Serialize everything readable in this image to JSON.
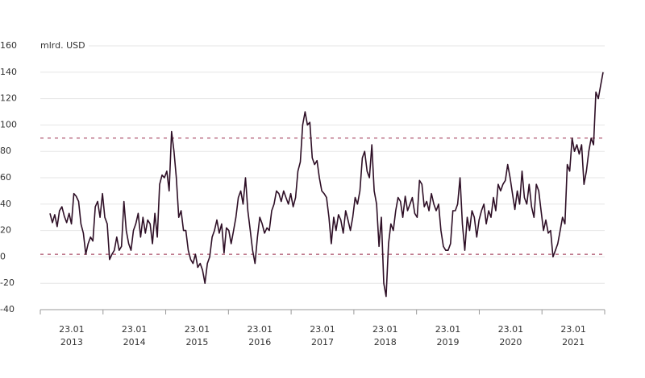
{
  "chart_data": {
    "type": "line",
    "axis_label": "mlrd. USD",
    "x_labels": [
      {
        "day": "23.01",
        "year": "2013"
      },
      {
        "day": "23.01",
        "year": "2014"
      },
      {
        "day": "23.01",
        "year": "2015"
      },
      {
        "day": "23.01",
        "year": "2016"
      },
      {
        "day": "23.01",
        "year": "2017"
      },
      {
        "day": "23.01",
        "year": "2018"
      },
      {
        "day": "23.01",
        "year": "2019"
      },
      {
        "day": "23.01",
        "year": "2020"
      },
      {
        "day": "23.01",
        "year": "2021"
      }
    ],
    "series": [
      {
        "color": "#2e0f26",
        "values": [
          33,
          26,
          32,
          23,
          35,
          38,
          31,
          26,
          33,
          25,
          48,
          46,
          42,
          25,
          18,
          2,
          10,
          15,
          12,
          38,
          42,
          30,
          48,
          30,
          25,
          -2,
          2,
          5,
          15,
          5,
          8,
          42,
          20,
          10,
          5,
          20,
          25,
          33,
          15,
          30,
          18,
          28,
          25,
          10,
          33,
          15,
          55,
          62,
          60,
          65,
          50,
          95,
          80,
          60,
          30,
          35,
          20,
          20,
          5,
          -2,
          -5,
          2,
          -8,
          -5,
          -10,
          -20,
          -5,
          0,
          15,
          20,
          28,
          18,
          25,
          3,
          22,
          20,
          10,
          20,
          30,
          45,
          50,
          40,
          60,
          35,
          20,
          5,
          -5,
          15,
          30,
          25,
          18,
          22,
          20,
          35,
          40,
          50,
          48,
          42,
          50,
          45,
          40,
          48,
          38,
          45,
          65,
          72,
          100,
          110,
          100,
          102,
          75,
          70,
          73,
          60,
          50,
          48,
          45,
          30,
          10,
          30,
          20,
          32,
          28,
          18,
          35,
          28,
          20,
          30,
          45,
          40,
          50,
          75,
          80,
          65,
          60,
          85,
          50,
          40,
          8,
          30,
          -20,
          -30,
          10,
          25,
          20,
          35,
          45,
          42,
          30,
          46,
          35,
          40,
          45,
          33,
          30,
          58,
          55,
          38,
          42,
          35,
          48,
          40,
          35,
          40,
          20,
          8,
          5,
          5,
          10,
          35,
          35,
          40,
          60,
          25,
          5,
          30,
          20,
          35,
          30,
          15,
          28,
          35,
          40,
          25,
          35,
          30,
          45,
          35,
          55,
          50,
          55,
          58,
          70,
          60,
          48,
          36,
          50,
          40,
          65,
          45,
          40,
          55,
          38,
          30,
          55,
          50,
          35,
          20,
          28,
          18,
          20,
          0,
          5,
          10,
          20,
          30,
          25,
          70,
          65,
          90,
          80,
          85,
          78,
          85,
          55,
          65,
          80,
          90,
          85,
          125,
          120,
          130,
          140
        ]
      }
    ],
    "reference_lines": [
      90,
      2
    ],
    "reference_color": "#9b2c4a",
    "ylim": [
      -40,
      160
    ],
    "yticks": [
      -40,
      -20,
      0,
      20,
      40,
      60,
      80,
      100,
      120,
      140,
      160
    ],
    "grid": true
  }
}
